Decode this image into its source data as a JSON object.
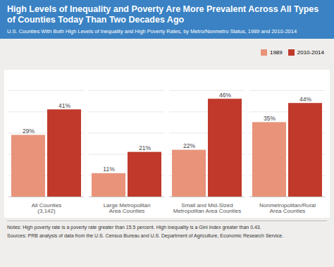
{
  "chart_data": {
    "type": "bar",
    "title": "High Levels of Inequality and Poverty Are More Prevalent Across All Types of Counties Today Than Two Decades Ago",
    "subtitle": "U.S. Counties With Both High Levels of Inequality and High Poverty Rates, by Metro/Nonmetro Status, 1989 and 2010-2014",
    "annotations": [
      "Notes: High poverty rate is a poverty rate greater than 15.5 percent. High inequality is a Gini index greater than 0.43.",
      "Sources: PRB analysis of data from the U.S. Census Bureau and U.S. Department of Agriculture, Economic Research Service."
    ],
    "categories": [
      "All Counties\n(3,142)",
      "Large Metropolitan\nArea Counties",
      "Small and Mid-Sized\nMetropolitan Area Counties",
      "Nonmetropolitan/Rural\nArea Counties"
    ],
    "series": [
      {
        "name": "1989",
        "color": "#e8937a",
        "values": [
          29,
          11,
          22,
          35
        ],
        "value_labels": [
          "29%",
          "11%",
          "22%",
          "35%"
        ]
      },
      {
        "name": "2010-2014",
        "color": "#c0392b",
        "values": [
          41,
          21,
          46,
          44
        ],
        "value_labels": [
          "41%",
          "21%",
          "46%",
          "44%"
        ]
      }
    ],
    "ylim": [
      0,
      55
    ],
    "yticks": [
      0,
      10,
      20,
      30,
      40,
      50
    ],
    "grid": true,
    "legend": "top-right",
    "data_labels": true,
    "tick_labels": "x"
  }
}
